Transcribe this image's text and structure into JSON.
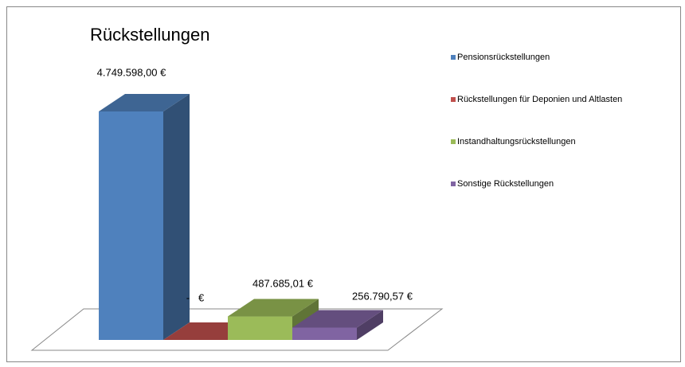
{
  "chart_data": {
    "type": "bar3d",
    "title": "Rückstellungen",
    "series": [
      {
        "name": "Pensionsrückstellungen",
        "color": "#4f81bd",
        "values": [
          4749598.0
        ],
        "value_labels": [
          "4.749.598,00 €"
        ]
      },
      {
        "name": "Rückstellungen für Deponien und Altlasten",
        "color": "#c0504d",
        "values": [
          0
        ],
        "value_labels": [
          "-   €"
        ]
      },
      {
        "name": "Instandhaltungsrückstellungen",
        "color": "#9bbb59",
        "values": [
          487685.01
        ],
        "value_labels": [
          "487.685,01 €"
        ]
      },
      {
        "name": "Sonstige Rückstellungen",
        "color": "#8064a2",
        "values": [
          256790.57
        ],
        "value_labels": [
          "256.790,57 €"
        ]
      }
    ],
    "legend": "right"
  }
}
